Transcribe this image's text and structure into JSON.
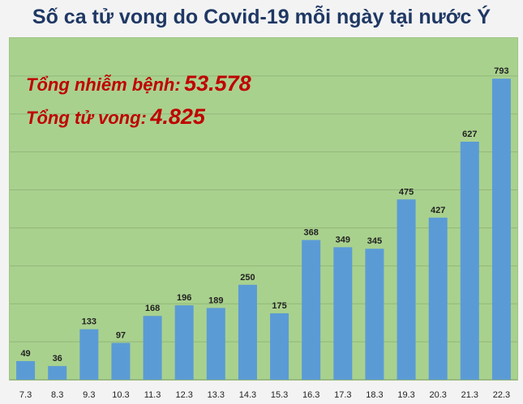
{
  "title": "Số ca tử vong do Covid-19 mỗi ngày tại nước Ý",
  "summary": {
    "cases_label": "Tổng nhiễm bệnh:",
    "cases_value": "53.578",
    "deaths_label": "Tổng tử vong:",
    "deaths_value": "4.825"
  },
  "colors": {
    "plot_background": "#a9d18e",
    "bar": "#5b9bd5",
    "summary_text": "#c00000",
    "title_text": "#1f3864"
  },
  "chart_data": {
    "type": "bar",
    "title": "Số ca tử vong do Covid-19 mỗi ngày tại nước Ý",
    "categories": [
      "7.3",
      "8.3",
      "9.3",
      "10.3",
      "11.3",
      "12.3",
      "13.3",
      "14.3",
      "15.3",
      "16.3",
      "17.3",
      "18.3",
      "19.3",
      "20.3",
      "21.3",
      "22.3"
    ],
    "values": [
      49,
      36,
      133,
      97,
      168,
      196,
      189,
      250,
      175,
      368,
      349,
      345,
      475,
      427,
      627,
      793
    ],
    "xlabel": "",
    "ylabel": "",
    "ylim": [
      0,
      900
    ],
    "grid": true,
    "data_labels": true,
    "legend": "none"
  }
}
